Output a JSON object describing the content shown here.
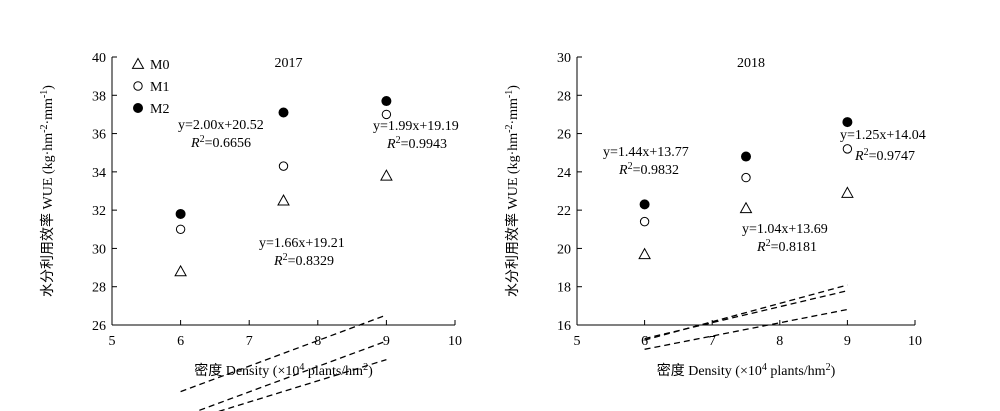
{
  "chart_data": [
    {
      "type": "scatter",
      "title": "2017",
      "xlabel": "密度 Density (×10",
      "xlabel_sup": "4",
      "xlabel_tail": " plants/hm",
      "xlabel_sup2": "2",
      "xlabel_end": ")",
      "ylabel": "水分利用效率 WUE (kg·hm",
      "ylabel_sup1": "-2",
      "ylabel_mid": "·mm",
      "ylabel_sup2": "-1",
      "ylabel_end": ")",
      "xlim": [
        5,
        10
      ],
      "ylim": [
        26,
        40
      ],
      "xticks": [
        "5",
        "6",
        "7",
        "8",
        "9",
        "10"
      ],
      "yticks": [
        "26",
        "28",
        "30",
        "32",
        "34",
        "36",
        "38",
        "40"
      ],
      "grid": false,
      "legend_position": "top-left",
      "series": [
        {
          "name": "M0",
          "marker": "triangle-open",
          "x": [
            6,
            7.5,
            9
          ],
          "y": [
            28.8,
            32.5,
            33.8
          ],
          "trend": {
            "slope": 1.66,
            "intercept": 19.21
          },
          "equation": "y=1.66x+19.21",
          "r2": "=0.8329"
        },
        {
          "name": "M1",
          "marker": "circle-open",
          "x": [
            6,
            7.5,
            9
          ],
          "y": [
            31.0,
            34.3,
            37.0
          ],
          "trend": {
            "slope": 1.99,
            "intercept": 19.19
          },
          "equation": "y=1.99x+19.19",
          "r2": "=0.9943"
        },
        {
          "name": "M2",
          "marker": "circle-filled",
          "x": [
            6,
            7.5,
            9
          ],
          "y": [
            31.8,
            37.1,
            37.7
          ],
          "trend": {
            "slope": 2.0,
            "intercept": 20.52
          },
          "equation": "y=2.00x+20.52",
          "r2": "=0.6656"
        }
      ]
    },
    {
      "type": "scatter",
      "title": "2018",
      "xlabel": "密度 Density (×10",
      "xlabel_sup": "4",
      "xlabel_tail": " plants/hm",
      "xlabel_sup2": "2",
      "xlabel_end": ")",
      "ylabel": "水分利用效率 WUE (kg·hm",
      "ylabel_sup1": "-2",
      "ylabel_mid": "·mm",
      "ylabel_sup2": "-1",
      "ylabel_end": ")",
      "xlim": [
        5,
        10
      ],
      "ylim": [
        16,
        30
      ],
      "xticks": [
        "5",
        "6",
        "7",
        "8",
        "9",
        "10"
      ],
      "yticks": [
        "16",
        "18",
        "20",
        "22",
        "24",
        "26",
        "28",
        "30"
      ],
      "grid": false,
      "series": [
        {
          "name": "M0",
          "marker": "triangle-open",
          "x": [
            6,
            7.5,
            9
          ],
          "y": [
            19.7,
            22.1,
            22.9
          ],
          "trend": {
            "slope": 1.04,
            "intercept": 13.69
          },
          "equation": "y=1.04x+13.69",
          "r2": "=0.8181"
        },
        {
          "name": "M1",
          "marker": "circle-open",
          "x": [
            6,
            7.5,
            9
          ],
          "y": [
            21.4,
            23.7,
            25.2
          ],
          "trend": {
            "slope": 1.25,
            "intercept": 14.04
          },
          "equation": "y=1.25x+14.04",
          "r2": "=0.9747"
        },
        {
          "name": "M2",
          "marker": "circle-filled",
          "x": [
            6,
            7.5,
            9
          ],
          "y": [
            22.3,
            24.8,
            26.6
          ],
          "trend": {
            "slope": 1.44,
            "intercept": 13.77
          },
          "equation": "y=1.44x+13.77",
          "r2": "=0.9832"
        }
      ]
    }
  ]
}
